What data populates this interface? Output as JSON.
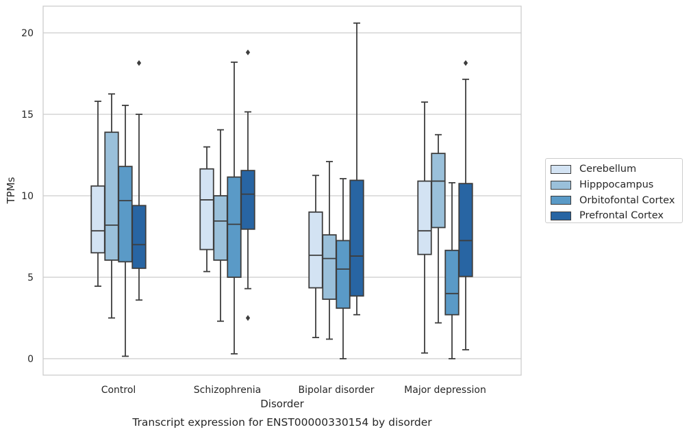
{
  "chart_data": {
    "type": "boxplot",
    "title": "",
    "caption": "Transcript expression for ENST00000330154 by disorder",
    "xlabel": "Disorder",
    "ylabel": "TPMs",
    "ylim": [
      -1,
      21.6
    ],
    "yticks": [
      0,
      5,
      10,
      15,
      20
    ],
    "yticks_labels": [
      "0",
      "5",
      "10",
      "15",
      "20"
    ],
    "grid": "horizontal",
    "legend_position": "right",
    "categories": [
      "Control",
      "Schizophrenia",
      "Bipolar disorder",
      "Major depression"
    ],
    "series": [
      {
        "name": "Cerebellum",
        "color": "#d3e3f3",
        "boxes": [
          {
            "whislo": 4.45,
            "q1": 6.5,
            "med": 7.85,
            "q3": 10.6,
            "whishi": 15.8,
            "fliers": []
          },
          {
            "whislo": 5.35,
            "q1": 6.7,
            "med": 9.75,
            "q3": 11.65,
            "whishi": 13.0,
            "fliers": []
          },
          {
            "whislo": 1.3,
            "q1": 4.35,
            "med": 6.35,
            "q3": 9.0,
            "whishi": 11.25,
            "fliers": []
          },
          {
            "whislo": 0.35,
            "q1": 6.4,
            "med": 7.85,
            "q3": 10.9,
            "whishi": 15.75,
            "fliers": []
          }
        ]
      },
      {
        "name": "Hipppocampus",
        "color": "#9ac0da",
        "boxes": [
          {
            "whislo": 2.5,
            "q1": 6.05,
            "med": 8.2,
            "q3": 13.9,
            "whishi": 16.25,
            "fliers": []
          },
          {
            "whislo": 2.3,
            "q1": 6.05,
            "med": 8.45,
            "q3": 10.0,
            "whishi": 14.05,
            "fliers": []
          },
          {
            "whislo": 1.2,
            "q1": 3.65,
            "med": 6.15,
            "q3": 7.6,
            "whishi": 12.1,
            "fliers": []
          },
          {
            "whislo": 2.2,
            "q1": 8.05,
            "med": 10.9,
            "q3": 12.6,
            "whishi": 13.75,
            "fliers": []
          }
        ]
      },
      {
        "name": "Orbitofontal Cortex",
        "color": "#5a9ac7",
        "boxes": [
          {
            "whislo": 0.15,
            "q1": 5.95,
            "med": 9.7,
            "q3": 11.8,
            "whishi": 15.55,
            "fliers": []
          },
          {
            "whislo": 0.3,
            "q1": 5.0,
            "med": 8.25,
            "q3": 11.15,
            "whishi": 18.2,
            "fliers": []
          },
          {
            "whislo": 0.0,
            "q1": 3.1,
            "med": 5.5,
            "q3": 7.25,
            "whishi": 11.05,
            "fliers": []
          },
          {
            "whislo": 0.0,
            "q1": 2.7,
            "med": 4.0,
            "q3": 6.65,
            "whishi": 10.8,
            "fliers": []
          }
        ]
      },
      {
        "name": "Prefrontal Cortex",
        "color": "#2865a3",
        "boxes": [
          {
            "whislo": 3.6,
            "q1": 5.55,
            "med": 7.0,
            "q3": 9.4,
            "whishi": 15.0,
            "fliers": [
              18.15
            ]
          },
          {
            "whislo": 4.3,
            "q1": 7.95,
            "med": 10.1,
            "q3": 11.55,
            "whishi": 15.15,
            "fliers": [
              18.8,
              2.5
            ]
          },
          {
            "whislo": 2.7,
            "q1": 3.85,
            "med": 6.3,
            "q3": 10.95,
            "whishi": 20.6,
            "fliers": []
          },
          {
            "whislo": 0.55,
            "q1": 5.05,
            "med": 7.25,
            "q3": 10.75,
            "whishi": 17.15,
            "fliers": [
              18.15
            ]
          }
        ]
      }
    ]
  }
}
